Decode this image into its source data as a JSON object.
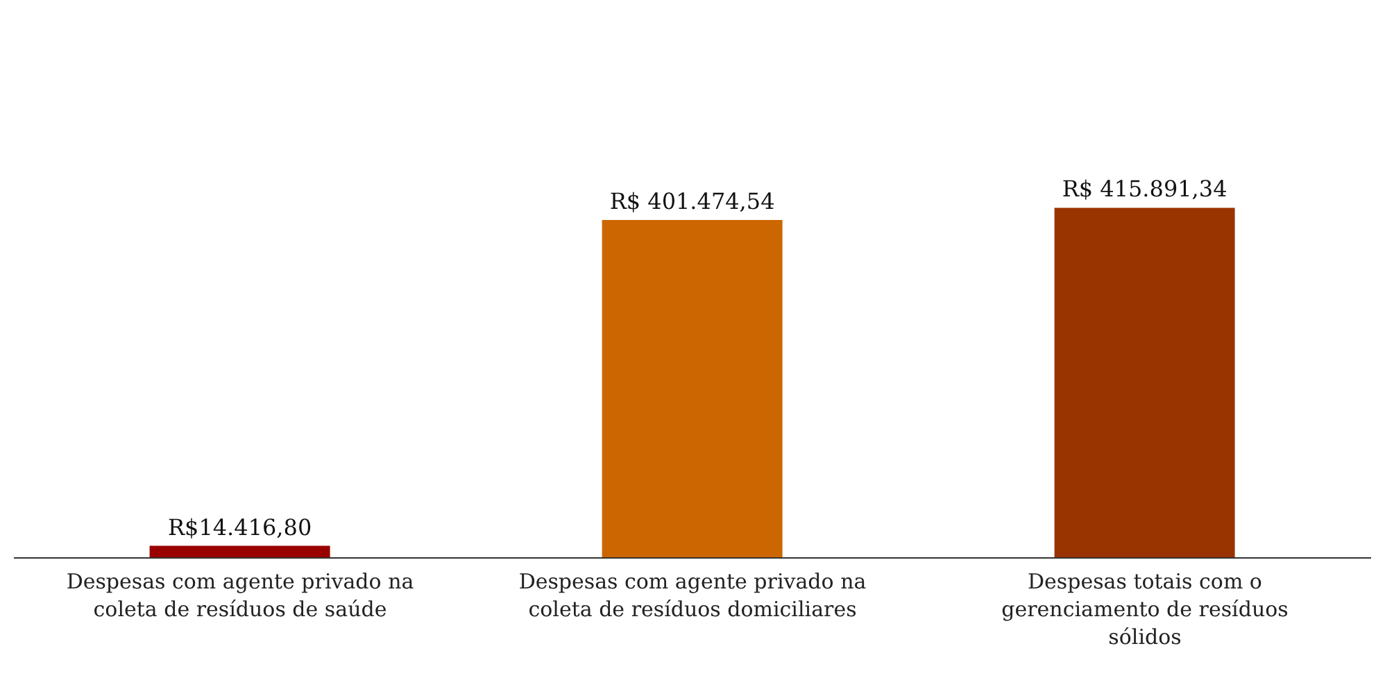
{
  "chart_data": {
    "type": "bar",
    "categories": [
      "Despesas com agente privado na coleta de resíduos de saúde",
      "Despesas com agente privado na coleta de resíduos domiciliares",
      "Despesas totais com o gerenciamento de resíduos sólidos"
    ],
    "values": [
      14416.8,
      401474.54,
      415891.34
    ],
    "colors": [
      "#990000",
      "#cc6600",
      "#993300"
    ],
    "value_labels": [
      "R$14.416,80",
      "R$ 401.474,54",
      "R$ 415.891,34"
    ],
    "grid": false,
    "legend": false
  }
}
